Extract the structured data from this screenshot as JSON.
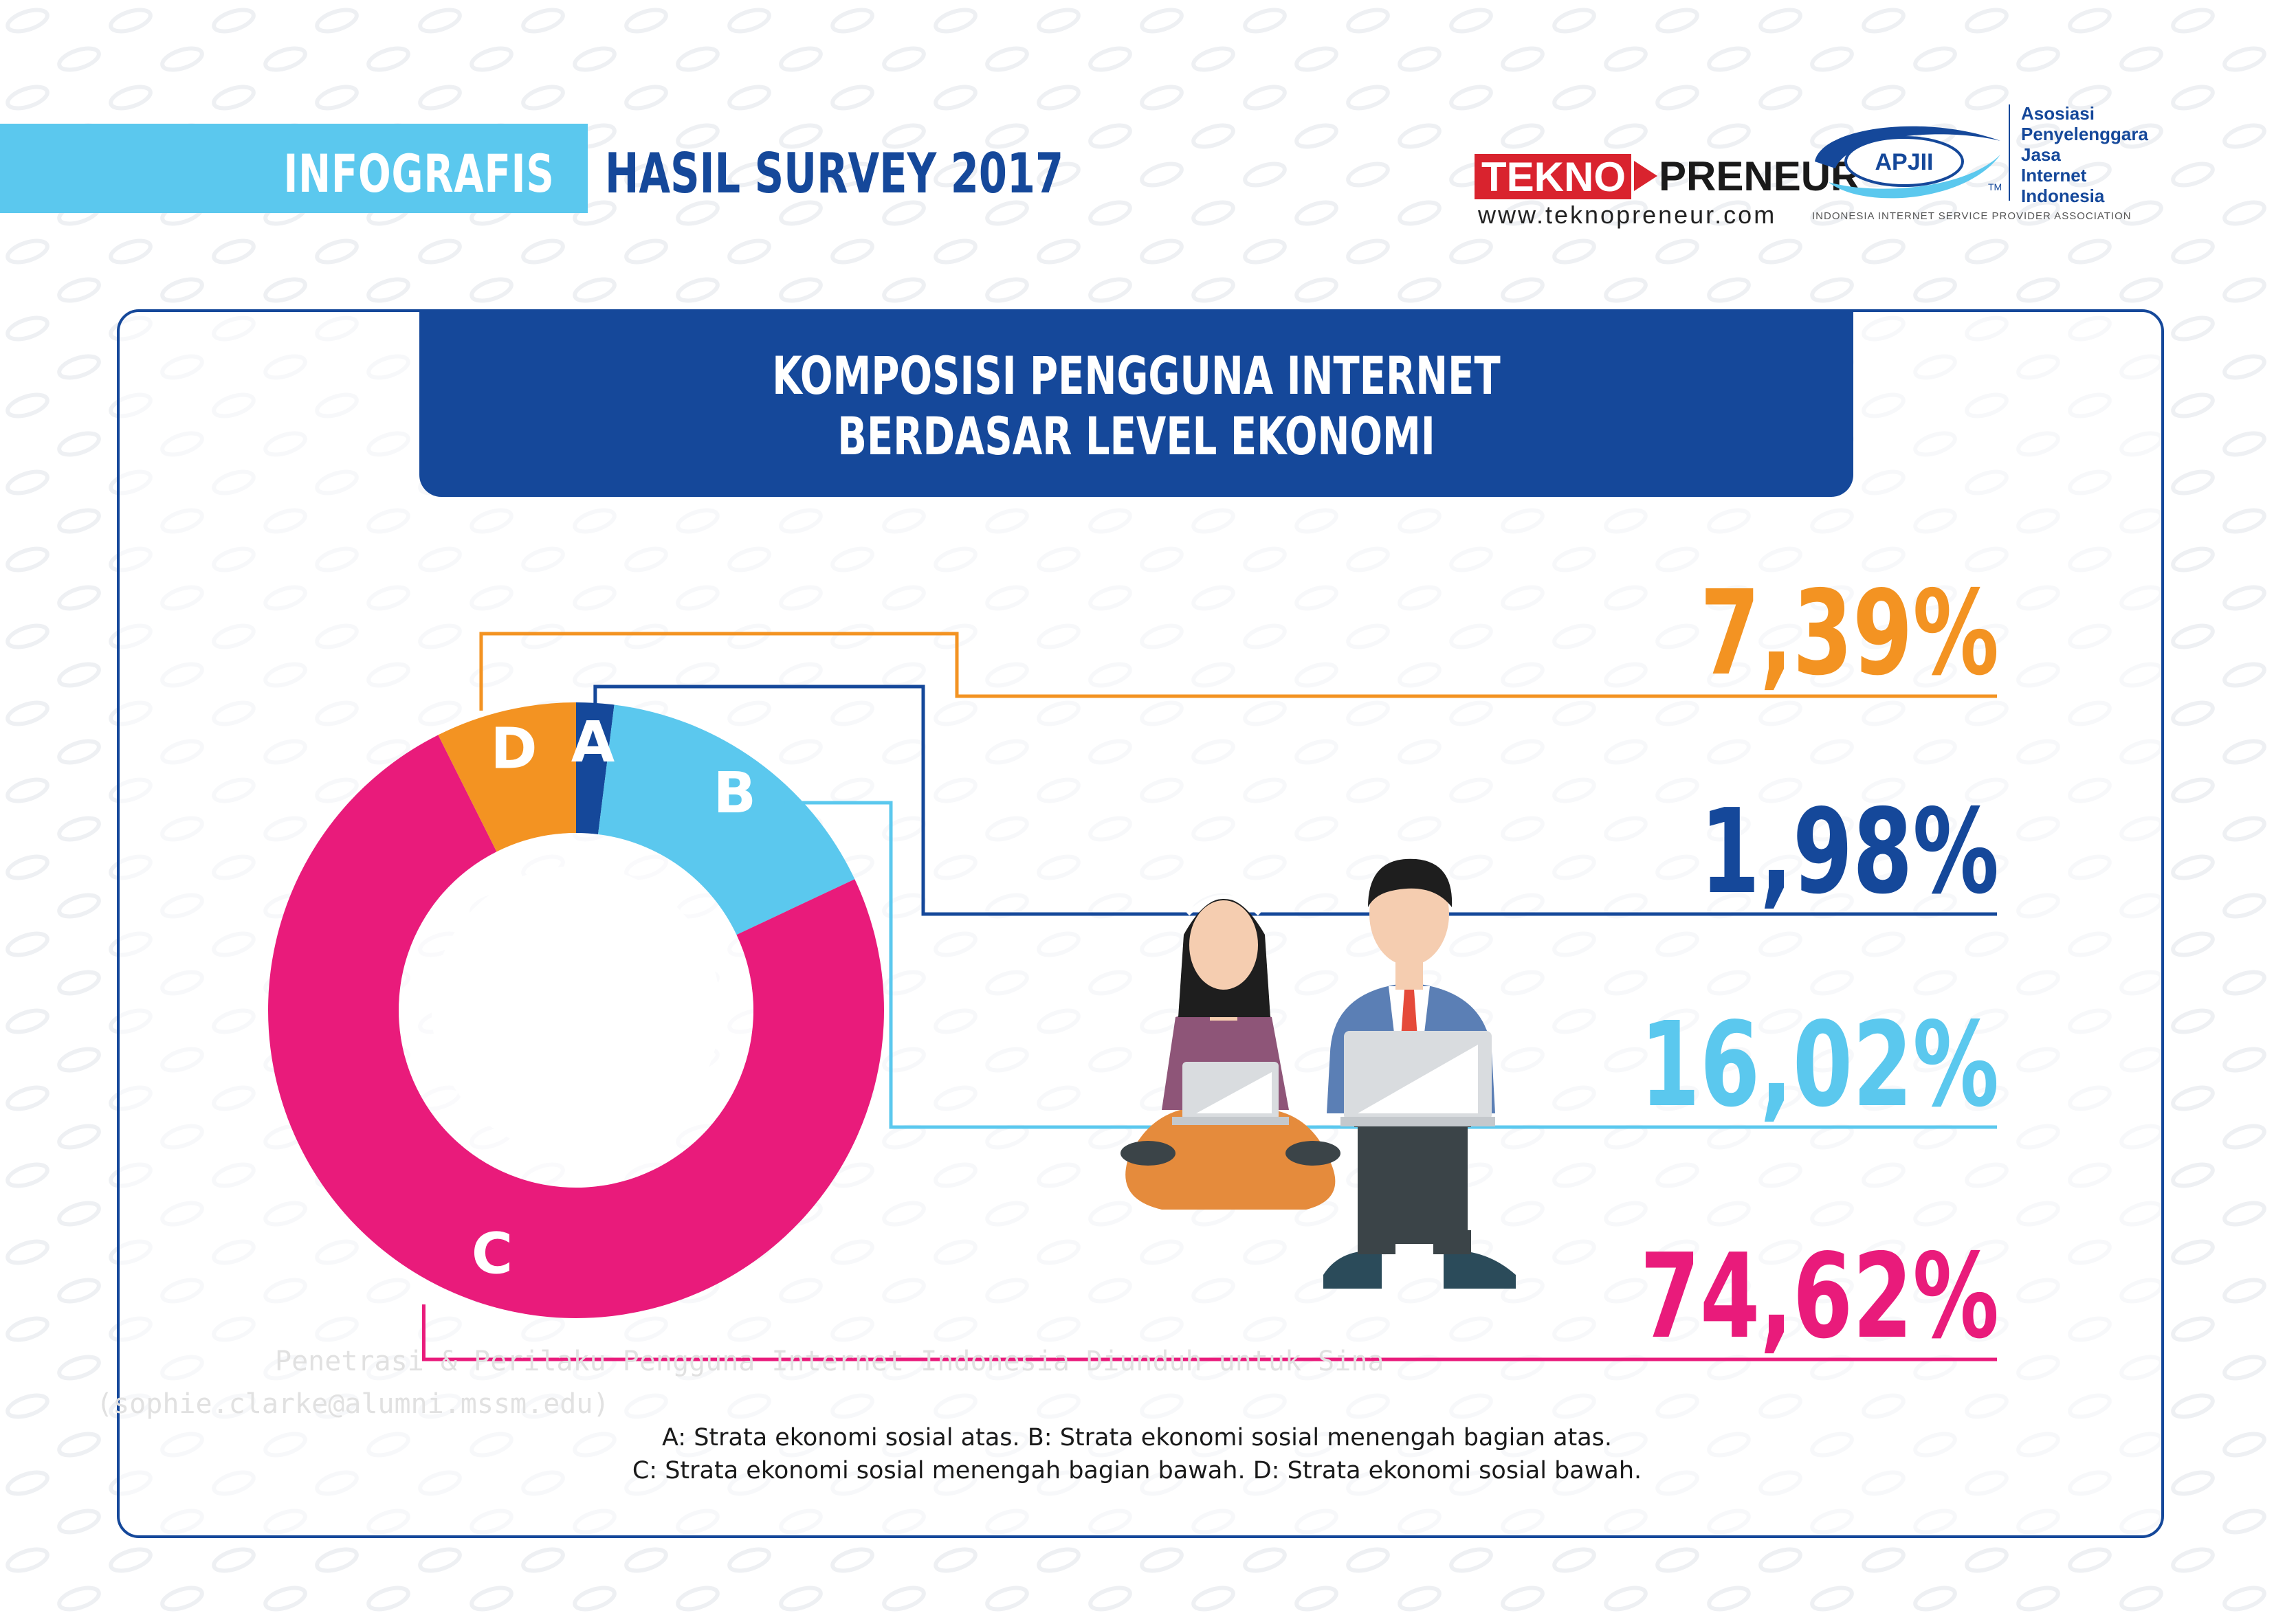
{
  "header": {
    "tag_label": "INFOGRAFIS",
    "survey_title": "HASIL SURVEY 2017"
  },
  "logos": {
    "teknopreneur_left": "TEKNO",
    "teknopreneur_right": "PRENEUR",
    "teknopreneur_url": "www.teknopreneur.com",
    "apjii_mark": "APJII",
    "apjii_tm": "TM",
    "apjii_name_lines": [
      "Asosiasi",
      "Penyelenggara",
      "Jasa",
      "Internet",
      "Indonesia"
    ],
    "apjii_tagline": "INDONESIA INTERNET SERVICE PROVIDER ASSOCIATION"
  },
  "chart_data": {
    "type": "pie",
    "title_lines": [
      "KOMPOSISI PENGGUNA INTERNET",
      "BERDASAR LEVEL EKONOMI"
    ],
    "slices": [
      {
        "label": "A",
        "value": 1.98,
        "display": "1,98%",
        "color": "#15489a"
      },
      {
        "label": "B",
        "value": 16.02,
        "display": "16,02%",
        "color": "#5bc8ee"
      },
      {
        "label": "C",
        "value": 74.62,
        "display": "74,62%",
        "color": "#e91b7b"
      },
      {
        "label": "D",
        "value": 7.39,
        "display": "7,39%",
        "color": "#f39322"
      }
    ],
    "callout_order": [
      "D",
      "A",
      "B",
      "C"
    ]
  },
  "legend_note": {
    "line1": "A: Strata ekonomi sosial atas. B: Strata ekonomi sosial menengah bagian atas.",
    "line2": "C: Strata ekonomi sosial menengah bagian bawah. D: Strata ekonomi sosial bawah."
  },
  "watermark": {
    "line1": "Penetrasi & Perilaku Pengguna Internet Indonesia   Diunduh untuk Sina",
    "line2": "(sophie.clarke@alumni.mssm.edu)"
  },
  "illustration": {
    "icon": "people-with-laptops-icon",
    "colors": {
      "woman_shirt": "#8e5578",
      "man_jacket": "#5b7fb5",
      "pants": "#3b4448",
      "legs": "#e58b3c"
    }
  }
}
